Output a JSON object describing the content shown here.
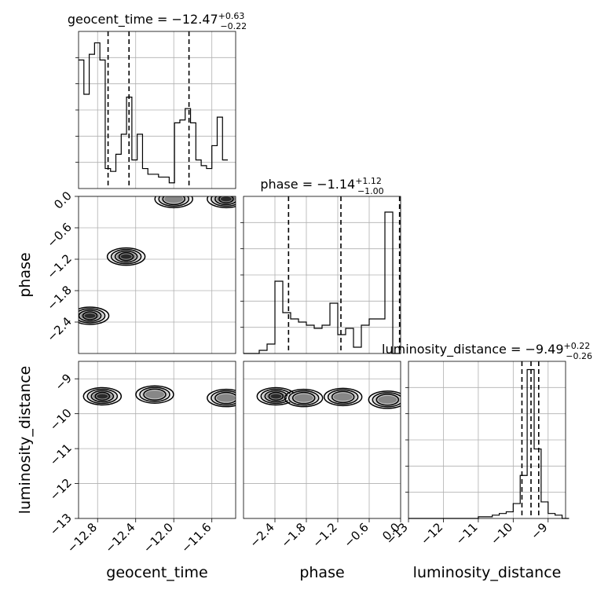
{
  "chart_data": {
    "type": "corner",
    "parameters": [
      "geocent_time",
      "phase",
      "luminosity_distance"
    ],
    "histograms": [
      {
        "parameter": "geocent_time",
        "title_main": "geocent_time = −12.47",
        "title_sup": "+0.63",
        "title_sub": "−0.22",
        "bin_edges": [
          -13.0,
          -12.944,
          -12.888,
          -12.832,
          -12.776,
          -12.72,
          -12.664,
          -12.608,
          -12.552,
          -12.496,
          -12.44,
          -12.384,
          -12.328,
          -12.272,
          -12.216,
          -12.16,
          -12.104,
          -12.048,
          -11.992,
          -11.936,
          -11.88,
          -11.824,
          -11.768,
          -11.712,
          -11.656,
          -11.6,
          -11.544,
          -11.488,
          -11.432
        ],
        "counts": [
          45,
          33,
          47,
          51,
          45,
          7,
          6,
          12,
          19,
          32,
          10,
          19,
          7,
          5,
          5,
          4,
          4,
          2,
          23,
          24,
          28,
          23,
          10,
          8,
          7,
          15,
          25,
          10
        ],
        "ymax": 55,
        "quantiles": [
          -12.69,
          -12.47,
          -11.84
        ],
        "xlim": [
          -13.0,
          -11.35
        ]
      },
      {
        "parameter": "phase",
        "title_main": "phase = −1.14",
        "title_sup": "+1.12",
        "title_sub": "−1.00",
        "bin_edges": [
          -3.0,
          -2.85,
          -2.7,
          -2.55,
          -2.4,
          -2.25,
          -2.1,
          -1.95,
          -1.8,
          -1.65,
          -1.5,
          -1.35,
          -1.2,
          -1.05,
          -0.9,
          -0.75,
          -0.6,
          -0.45,
          -0.3,
          -0.15,
          0.0
        ],
        "counts": [
          0,
          0,
          1,
          3,
          23,
          13,
          11,
          10,
          9,
          8,
          9,
          16,
          6,
          8,
          2,
          9,
          11,
          11,
          45,
          0
        ],
        "ymax": 50,
        "quantiles": [
          -2.14,
          -1.14,
          -0.02
        ],
        "xlim": [
          -3.0,
          0.0
        ]
      },
      {
        "parameter": "luminosity_distance",
        "title_main": "luminosity_distance = −9.49",
        "title_sup": "+0.22",
        "title_sub": "−0.26",
        "bin_edges": [
          -13.0,
          -12.8,
          -12.6,
          -12.4,
          -12.2,
          -12.0,
          -11.8,
          -11.6,
          -11.4,
          -11.2,
          -11.0,
          -10.8,
          -10.6,
          -10.4,
          -10.2,
          -10.0,
          -9.8,
          -9.6,
          -9.4,
          -9.2,
          -9.0,
          -8.8,
          -8.6,
          -8.4
        ],
        "counts": [
          0,
          0,
          0,
          0,
          0,
          0,
          0,
          0,
          0,
          0,
          1,
          1,
          2,
          3,
          4,
          9,
          26,
          90,
          42,
          10,
          3,
          2,
          0
        ],
        "ymax": 95,
        "quantiles": [
          -9.75,
          -9.49,
          -9.27
        ],
        "xlim": [
          -13.0,
          -8.5
        ]
      }
    ],
    "panels_2d": [
      {
        "x": "geocent_time",
        "y": "phase",
        "xlim": [
          -13.0,
          -11.35
        ],
        "ylim": [
          -3.0,
          0.0
        ],
        "density_peaks": [
          {
            "x": -12.88,
            "y": -2.28,
            "level": 3
          },
          {
            "x": -12.5,
            "y": -1.15,
            "level": 3
          },
          {
            "x": -12.0,
            "y": -0.05,
            "level": 2
          },
          {
            "x": -11.45,
            "y": -0.05,
            "level": 3
          }
        ]
      },
      {
        "x": "geocent_time",
        "y": "luminosity_distance",
        "xlim": [
          -13.0,
          -11.35
        ],
        "ylim": [
          -13.0,
          -8.5
        ],
        "density_peaks": [
          {
            "x": -12.75,
            "y": -9.5,
            "level": 3
          },
          {
            "x": -12.2,
            "y": -9.45,
            "level": 2
          },
          {
            "x": -11.45,
            "y": -9.55,
            "level": 2
          }
        ]
      },
      {
        "x": "phase",
        "y": "luminosity_distance",
        "xlim": [
          -3.0,
          0.0
        ],
        "ylim": [
          -13.0,
          -8.5
        ],
        "density_peaks": [
          {
            "x": -2.38,
            "y": -9.5,
            "level": 3
          },
          {
            "x": -1.85,
            "y": -9.55,
            "level": 2
          },
          {
            "x": -1.1,
            "y": -9.52,
            "level": 2
          },
          {
            "x": -0.25,
            "y": -9.6,
            "level": 2
          }
        ]
      }
    ],
    "axes": {
      "geocent_time": {
        "label": "geocent_time",
        "ticks": [
          -12.8,
          -12.4,
          -12.0,
          -11.6
        ],
        "tick_labels": [
          "−12.8",
          "−12.4",
          "−12.0",
          "−11.6"
        ]
      },
      "phase": {
        "label": "phase",
        "ticks": [
          -2.4,
          -1.8,
          -1.2,
          -0.6,
          0.0
        ],
        "tick_labels": [
          "−2.4",
          "−1.8",
          "−1.2",
          "−0.6",
          "0.0"
        ]
      },
      "luminosity_distance": {
        "label": "luminosity_distance",
        "ticks": [
          -13,
          -12,
          -11,
          -10,
          -9
        ],
        "tick_labels": [
          "−13",
          "−12",
          "−11",
          "−10",
          "−9"
        ]
      }
    },
    "grid": true
  }
}
